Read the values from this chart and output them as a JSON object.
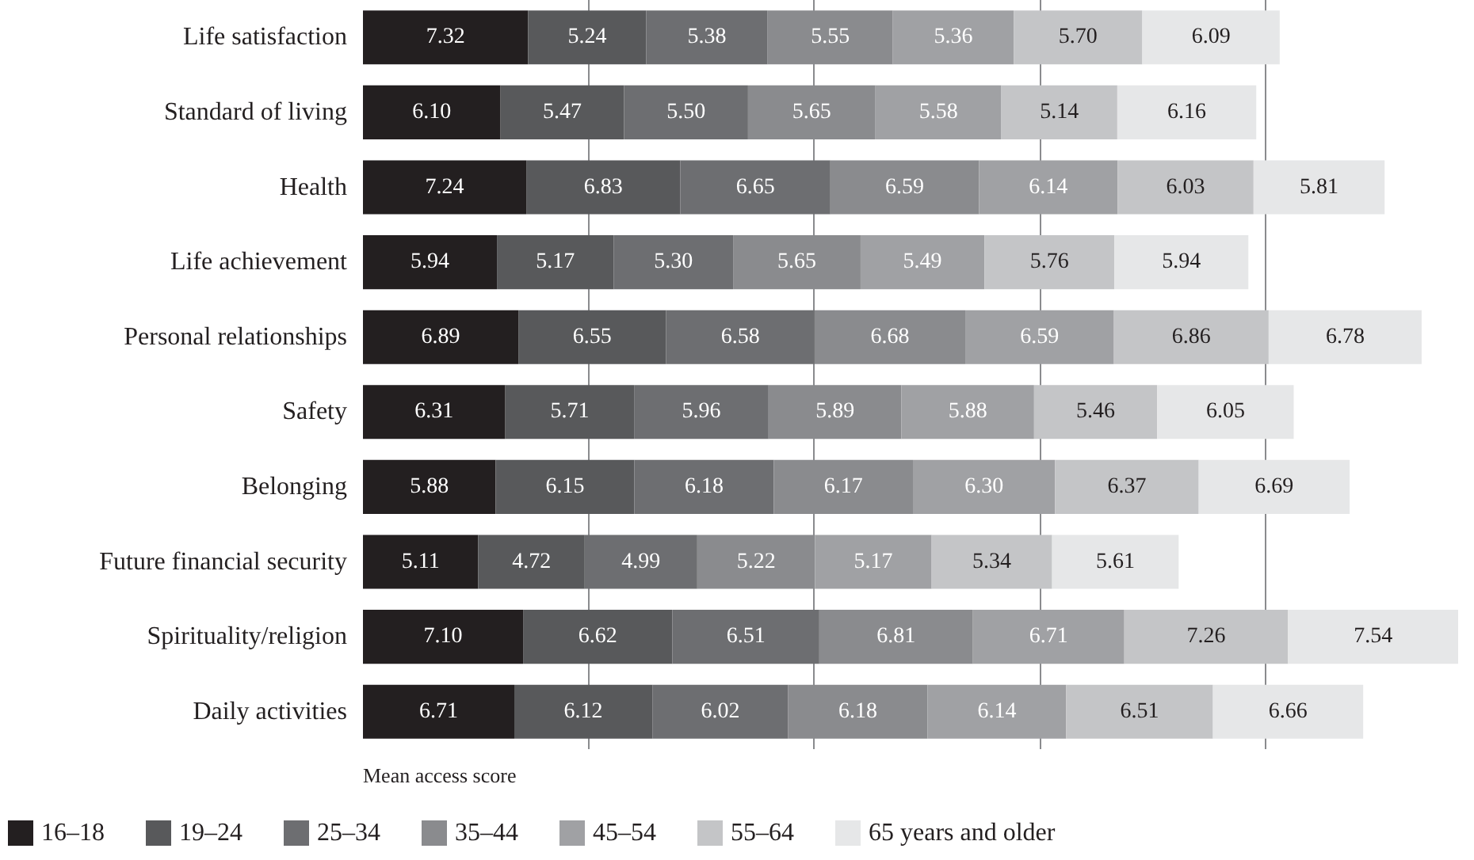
{
  "chart_data": {
    "type": "bar",
    "orientation": "horizontal",
    "stacked": true,
    "xlabel": "Mean access score",
    "categories": [
      "Life satisfaction",
      "Standard of living",
      "Health",
      "Life achievement",
      "Personal relationships",
      "Safety",
      "Belonging",
      "Future financial security",
      "Spirituality/religion",
      "Daily activities"
    ],
    "series": [
      {
        "name": "16–18",
        "color": "#231f20",
        "values": [
          7.32,
          6.1,
          7.24,
          5.94,
          6.89,
          6.31,
          5.88,
          5.11,
          7.1,
          6.71
        ],
        "value_labels": [
          "7.32",
          "6.10",
          "7.24",
          "5.94",
          "6.89",
          "6.31",
          "5.88",
          "5.11",
          "7.10",
          "6.71"
        ]
      },
      {
        "name": "19–24",
        "color": "#58595b",
        "values": [
          5.24,
          5.47,
          6.83,
          5.17,
          6.55,
          5.71,
          6.15,
          4.72,
          6.62,
          6.12
        ],
        "value_labels": [
          "5.24",
          "5.47",
          "6.83",
          "5.17",
          "6.55",
          "5.71",
          "6.15",
          "4.72",
          "6.62",
          "6.12"
        ]
      },
      {
        "name": "25–34",
        "color": "#6d6e71",
        "values": [
          5.38,
          5.5,
          6.65,
          5.3,
          6.58,
          5.96,
          6.18,
          4.99,
          6.51,
          6.02
        ],
        "value_labels": [
          "5.38",
          "5.50",
          "6.65",
          "5.30",
          "6.58",
          "5.96",
          "6.18",
          "4.99",
          "6.51",
          "6.02"
        ]
      },
      {
        "name": "35–44",
        "color": "#8a8b8e",
        "values": [
          5.55,
          5.65,
          6.59,
          5.65,
          6.68,
          5.89,
          6.17,
          5.22,
          6.81,
          6.18
        ],
        "value_labels": [
          "5.55",
          "5.65",
          "6.59",
          "5.65",
          "6.68",
          "5.89",
          "6.17",
          "5.22",
          "6.81",
          "6.18"
        ]
      },
      {
        "name": "45–54",
        "color": "#a0a1a4",
        "values": [
          5.36,
          5.58,
          6.14,
          5.49,
          6.59,
          5.88,
          6.3,
          5.17,
          6.71,
          6.14
        ],
        "value_labels": [
          "5.36",
          "5.58",
          "6.14",
          "5.49",
          "6.59",
          "5.88",
          "6.30",
          "5.17",
          "6.71",
          "6.14"
        ]
      },
      {
        "name": "55–64",
        "color": "#c4c5c7",
        "values": [
          5.7,
          5.14,
          6.03,
          5.76,
          6.86,
          5.46,
          6.37,
          5.34,
          7.26,
          6.51
        ],
        "value_labels": [
          "5.70",
          "5.14",
          "6.03",
          "5.76",
          "6.86",
          "5.46",
          "6.37",
          "5.34",
          "7.26",
          "6.51"
        ]
      },
      {
        "name": "65 years and older",
        "color": "#e6e7e8",
        "values": [
          6.09,
          6.16,
          5.81,
          5.94,
          6.78,
          6.05,
          6.69,
          5.61,
          7.54,
          6.66
        ],
        "value_labels": [
          "6.09",
          "6.16",
          "5.81",
          "5.94",
          "6.78",
          "6.05",
          "6.69",
          "5.61",
          "7.54",
          "6.66"
        ]
      }
    ],
    "xticks": [
      {
        "value": 10,
        "label": null
      },
      {
        "value": 20,
        "label": null
      },
      {
        "value": 30,
        "label": null
      },
      {
        "value": 40,
        "label": null
      }
    ],
    "tick_labels": "y",
    "grid": "x",
    "legend": "bottom"
  }
}
